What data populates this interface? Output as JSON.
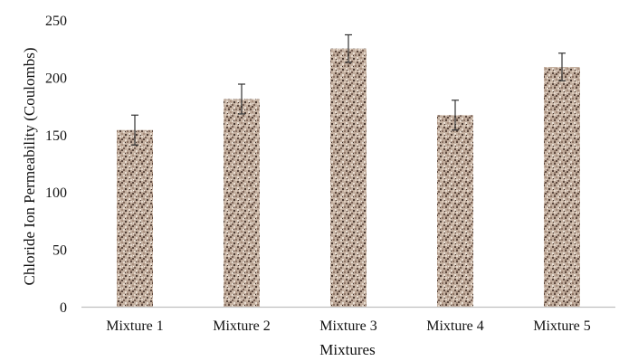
{
  "chart_data": {
    "type": "bar",
    "categories": [
      "Mixture 1",
      "Mixture 2",
      "Mixture 3",
      "Mixture 4",
      "Mixture 5"
    ],
    "values": [
      154,
      181,
      225,
      167,
      209
    ],
    "error_bars": [
      13,
      13,
      12,
      13,
      12
    ],
    "xlabel": "Mixtures",
    "ylabel": "Chloride Ion Permeability (Coulombs)",
    "ylim": [
      0,
      250
    ],
    "yticks": [
      0,
      50,
      100,
      150,
      200,
      250
    ],
    "grid": false,
    "legend": "none",
    "bar_pattern": "speckled beige/brown granite texture",
    "colors": {
      "bar_light": "#d9c8b9",
      "bar_mid": "#a89080",
      "bar_dark": "#5e4a40",
      "axis": "#bfbfbf",
      "error_bar": "#333333"
    }
  }
}
